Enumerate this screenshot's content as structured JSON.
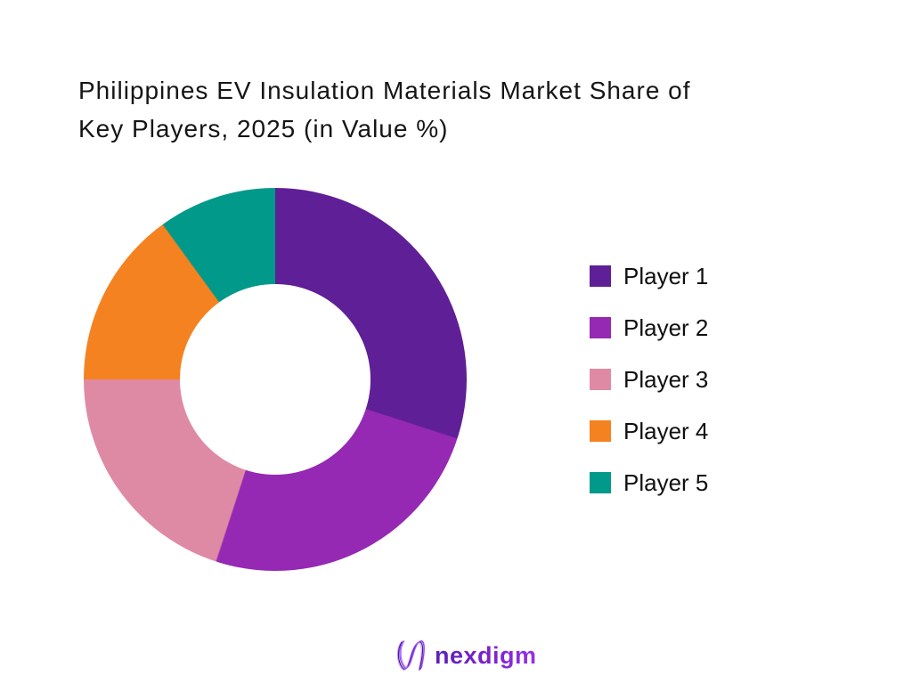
{
  "page": {
    "background": "#FFFFFF"
  },
  "title": {
    "line1": "Philippines EV Insulation Materials Market Share of",
    "line2": "Key Players, 2025 (in Value %)"
  },
  "chart_data": {
    "type": "pie",
    "donut": true,
    "hole_ratio": 0.5,
    "title": "Philippines EV Insulation Materials Market Share of Key Players, 2025 (in Value %)",
    "unit": "% of value",
    "categories": [
      "Player 1",
      "Player 2",
      "Player 3",
      "Player 4",
      "Player 5"
    ],
    "values": [
      30,
      25,
      20,
      15,
      10
    ],
    "colors": [
      "#5F1F96",
      "#9529B3",
      "#DF8AA5",
      "#F58220",
      "#00998A"
    ],
    "start_angle_deg": 0,
    "direction": "clockwise",
    "legend_position": "right",
    "data_labels": false
  },
  "footer": {
    "logo_text": "nexdigm"
  },
  "theme": {
    "title_color": "#151515",
    "legend_text_color": "#101010",
    "logo_gradient_start": "#5B21B6",
    "logo_gradient_end": "#9333EA"
  }
}
